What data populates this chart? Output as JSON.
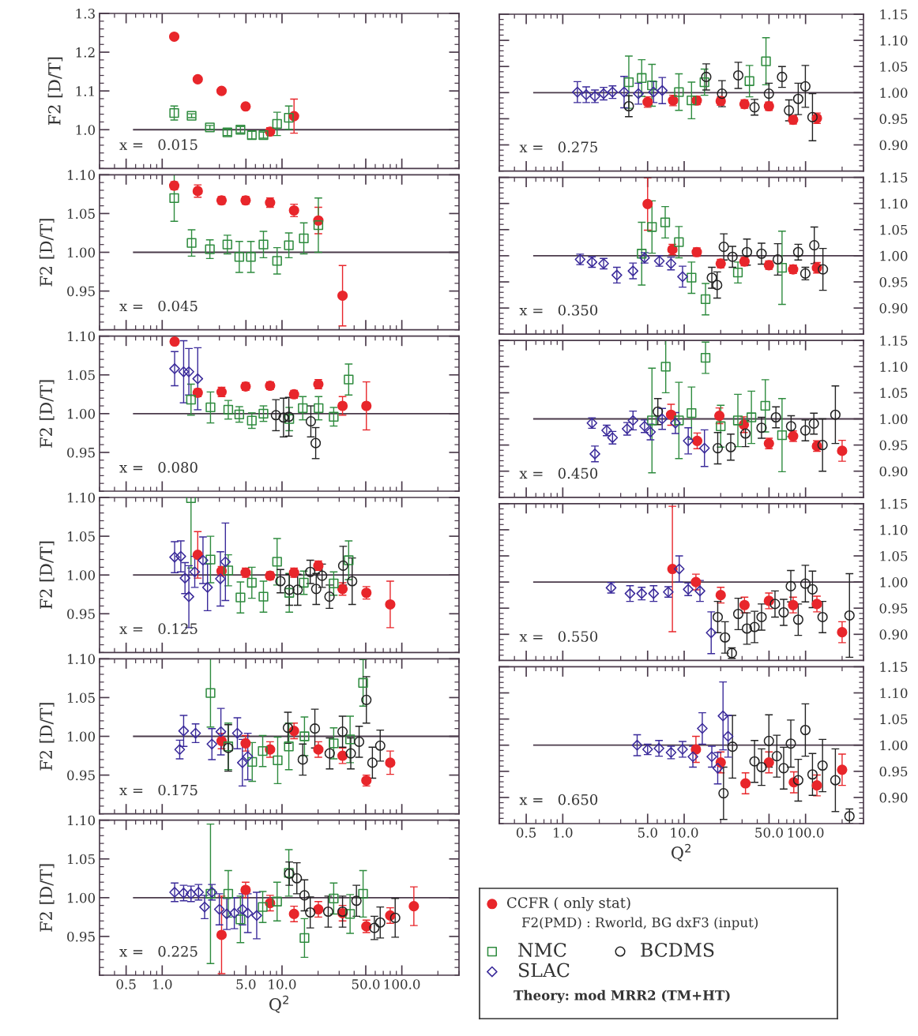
{
  "chart_data": [
    {
      "type": "scatter",
      "log": "x",
      "xlim": [
        0.3,
        300
      ],
      "xticks": [
        {
          "value": 0.5,
          "label": null
        },
        {
          "value": 1,
          "label": null
        },
        {
          "value": 5,
          "label": null
        },
        {
          "value": 10,
          "label": null
        },
        {
          "value": 50,
          "label": null
        },
        {
          "value": 100,
          "label": null
        }
      ],
      "ylim": [
        0.9,
        1.3
      ],
      "yticks": [
        {
          "value": 1.0,
          "label": "1.0"
        },
        {
          "value": 1.1,
          "label": "1.1"
        },
        {
          "value": 1.2,
          "label": "1.2"
        },
        {
          "value": 1.3,
          "label": "1.3"
        }
      ],
      "ylabel": "F2 [D/T]",
      "tick_labels": "y",
      "annotations": [
        "x =   0.015"
      ],
      "ref_lines": [
        {
          "axis": "y",
          "value": 1
        }
      ],
      "series": [
        {
          "color": "#e8262b",
          "marker": "circle",
          "x": [
            1.26,
            1.98,
            3.13,
            4.97,
            7.95,
            12.6
          ],
          "values": [
            1.24,
            1.13,
            1.1,
            1.06,
            0.995,
            1.035
          ],
          "errors": [
            0.005,
            0.005,
            0.005,
            0.005,
            0.01,
            0.044
          ]
        },
        {
          "color": "#2e8b3e",
          "marker": "square",
          "x": [
            1.26,
            1.76,
            2.5,
            3.5,
            4.5,
            5.6,
            7.0,
            9.1,
            11.4
          ],
          "values": [
            1.043,
            1.036,
            1.006,
            0.993,
            1.0,
            0.986,
            0.986,
            1.015,
            1.031
          ],
          "errors": [
            0.018,
            0.005,
            0.005,
            0.008,
            0.008,
            0.01,
            0.008,
            0.03,
            0.03
          ]
        }
      ]
    },
    {
      "type": "scatter",
      "log": "x",
      "xlim": [
        0.3,
        300
      ],
      "xticks": [
        {
          "value": 0.5,
          "label": null
        },
        {
          "value": 1,
          "label": null
        },
        {
          "value": 5,
          "label": null
        },
        {
          "value": 10,
          "label": null
        },
        {
          "value": 50,
          "label": null
        },
        {
          "value": 100,
          "label": null
        }
      ],
      "ylim": [
        0.9,
        1.1
      ],
      "yticks": [
        {
          "value": 0.95,
          "label": "0.95"
        },
        {
          "value": 1.0,
          "label": "1.00"
        },
        {
          "value": 1.05,
          "label": "1.05"
        },
        {
          "value": 1.1,
          "label": "1.10"
        }
      ],
      "ylabel": "F2 [D/T]",
      "tick_labels": "y",
      "annotations": [
        "x =   0.045"
      ],
      "ref_lines": [
        {
          "axis": "y",
          "value": 1
        }
      ],
      "series": [
        {
          "color": "#e8262b",
          "marker": "circle",
          "x": [
            1.26,
            1.98,
            3.13,
            4.97,
            7.95,
            12.6,
            20.1,
            32
          ],
          "values": [
            1.086,
            1.079,
            1.067,
            1.067,
            1.064,
            1.054,
            1.041,
            0.944
          ],
          "errors": [
            0.005,
            0.008,
            0.005,
            0.005,
            0.006,
            0.008,
            0.017,
            0.039
          ]
        },
        {
          "color": "#2e8b3e",
          "marker": "square",
          "x": [
            1.26,
            1.76,
            2.5,
            3.5,
            4.4,
            5.5,
            7.0,
            9.1,
            11.4,
            15.2,
            20.1
          ],
          "values": [
            1.07,
            1.012,
            1.004,
            1.01,
            0.994,
            0.994,
            1.01,
            0.989,
            1.009,
            1.018,
            1.035
          ],
          "errors": [
            0.03,
            0.017,
            0.012,
            0.012,
            0.02,
            0.02,
            0.017,
            0.017,
            0.016,
            0.02,
            0.035
          ]
        }
      ]
    },
    {
      "type": "scatter",
      "log": "x",
      "xlim": [
        0.3,
        300
      ],
      "xticks": [
        {
          "value": 0.5,
          "label": null
        },
        {
          "value": 1,
          "label": null
        },
        {
          "value": 5,
          "label": null
        },
        {
          "value": 10,
          "label": null
        },
        {
          "value": 50,
          "label": null
        },
        {
          "value": 100,
          "label": null
        }
      ],
      "ylim": [
        0.9,
        1.1
      ],
      "yticks": [
        {
          "value": 0.95,
          "label": "0.95"
        },
        {
          "value": 1.0,
          "label": "1.00"
        },
        {
          "value": 1.05,
          "label": "1.05"
        },
        {
          "value": 1.1,
          "label": "1.10"
        }
      ],
      "ylabel": "F2 [D/T]",
      "tick_labels": "y",
      "annotations": [
        "x =   0.080"
      ],
      "ref_lines": [
        {
          "axis": "y",
          "value": 1
        }
      ],
      "series": [
        {
          "color": "#e8262b",
          "marker": "circle",
          "x": [
            1.27,
            1.98,
            3.13,
            4.97,
            7.95,
            12.6,
            20.1,
            32,
            50.6
          ],
          "values": [
            1.093,
            1.027,
            1.028,
            1.035,
            1.036,
            1.025,
            1.038,
            1.01,
            1.01
          ],
          "errors": [
            0.004,
            0.005,
            0.006,
            0.005,
            0.005,
            0.005,
            0.006,
            0.012,
            0.031
          ]
        },
        {
          "color": "#2e8b3e",
          "marker": "square",
          "x": [
            1.74,
            2.53,
            3.56,
            4.4,
            5.6,
            7.0,
            11.5,
            14.9,
            20.2,
            27,
            36
          ],
          "values": [
            1.018,
            1.008,
            1.005,
            0.999,
            0.991,
            1.0,
            0.993,
            1.007,
            1.007,
            0.996,
            1.044
          ],
          "errors": [
            0.02,
            0.02,
            0.012,
            0.01,
            0.01,
            0.01,
            0.015,
            0.015,
            0.015,
            0.012,
            0.02
          ]
        },
        {
          "color": "#222222",
          "marker": "circle",
          "x": [
            8.9,
            10.3,
            11.4,
            17.4,
            19.1
          ],
          "values": [
            0.998,
            0.995,
            0.996,
            0.99,
            0.962
          ],
          "errors": [
            0.02,
            0.025,
            0.025,
            0.02,
            0.02
          ]
        },
        {
          "color": "#3a2a9a",
          "marker": "diamond",
          "x": [
            1.27,
            1.51,
            1.67,
            1.98
          ],
          "values": [
            1.058,
            1.054,
            1.054,
            1.045
          ],
          "errors": [
            0.022,
            0.04,
            0.03,
            0.04
          ]
        }
      ]
    },
    {
      "type": "scatter",
      "log": "x",
      "xlim": [
        0.3,
        300
      ],
      "xticks": [
        {
          "value": 0.5,
          "label": null
        },
        {
          "value": 1,
          "label": null
        },
        {
          "value": 5,
          "label": null
        },
        {
          "value": 10,
          "label": null
        },
        {
          "value": 50,
          "label": null
        },
        {
          "value": 100,
          "label": null
        }
      ],
      "ylim": [
        0.9,
        1.1
      ],
      "yticks": [
        {
          "value": 0.95,
          "label": "0.95"
        },
        {
          "value": 1.0,
          "label": "1.00"
        },
        {
          "value": 1.05,
          "label": "1.05"
        },
        {
          "value": 1.1,
          "label": "1.10"
        }
      ],
      "ylabel": "F2 [D/T]",
      "tick_labels": "y",
      "annotations": [
        "x =   0.125"
      ],
      "ref_lines": [
        {
          "axis": "y",
          "value": 1
        }
      ],
      "series": [
        {
          "color": "#e8262b",
          "marker": "circle",
          "x": [
            1.98,
            3.13,
            4.97,
            7.95,
            12.6,
            20.1,
            32,
            50.6,
            80
          ],
          "values": [
            1.026,
            1.005,
            1.003,
            0.999,
            1.003,
            1.012,
            0.982,
            0.977,
            0.962
          ],
          "errors": [
            0.03,
            0.006,
            0.006,
            0.005,
            0.006,
            0.006,
            0.008,
            0.008,
            0.03
          ]
        },
        {
          "color": "#2e8b3e",
          "marker": "square",
          "x": [
            1.74,
            2.53,
            3.56,
            4.5,
            5.6,
            7.0,
            9.1,
            11.5,
            15.2,
            27,
            36
          ],
          "values": [
            1.099,
            1.02,
            1.006,
            0.971,
            0.99,
            0.972,
            1.017,
            0.977,
            0.99,
            0.989,
            1.019
          ],
          "errors": [
            0.09,
            0.03,
            0.02,
            0.02,
            0.02,
            0.02,
            0.03,
            0.025,
            0.015,
            0.015,
            0.025
          ]
        },
        {
          "color": "#222222",
          "marker": "circle",
          "x": [
            9.7,
            11.5,
            13.5,
            17.2,
            19.3,
            21.6,
            24.9,
            32.4,
            38.5
          ],
          "values": [
            0.992,
            0.981,
            0.981,
            1.004,
            0.982,
            0.999,
            0.972,
            1.012,
            0.992
          ],
          "errors": [
            0.015,
            0.02,
            0.02,
            0.015,
            0.02,
            0.015,
            0.015,
            0.025,
            0.03
          ]
        },
        {
          "color": "#3a2a9a",
          "marker": "diamond",
          "x": [
            1.27,
            1.43,
            1.55,
            1.67,
            1.87,
            2.19,
            2.39,
            3.06,
            3.37
          ],
          "values": [
            1.023,
            1.024,
            0.996,
            0.972,
            1.004,
            1.019,
            0.984,
            0.995,
            1.017
          ],
          "errors": [
            0.02,
            0.02,
            0.02,
            0.04,
            0.02,
            0.03,
            0.03,
            0.035,
            0.05
          ]
        }
      ]
    },
    {
      "type": "scatter",
      "log": "x",
      "xlim": [
        0.3,
        300
      ],
      "xticks": [
        {
          "value": 0.5,
          "label": null
        },
        {
          "value": 1,
          "label": null
        },
        {
          "value": 5,
          "label": null
        },
        {
          "value": 10,
          "label": null
        },
        {
          "value": 50,
          "label": null
        },
        {
          "value": 100,
          "label": null
        }
      ],
      "ylim": [
        0.9,
        1.1
      ],
      "yticks": [
        {
          "value": 0.95,
          "label": "0.95"
        },
        {
          "value": 1.0,
          "label": "1.00"
        },
        {
          "value": 1.05,
          "label": "1.05"
        },
        {
          "value": 1.1,
          "label": "1.10"
        }
      ],
      "ylabel": "F2 [D/T]",
      "tick_labels": "y",
      "annotations": [
        "x =   0.175"
      ],
      "ref_lines": [
        {
          "axis": "y",
          "value": 1
        }
      ],
      "series": [
        {
          "color": "#e8262b",
          "marker": "circle",
          "x": [
            3.13,
            4.97,
            7.95,
            12.6,
            20.1,
            32,
            50.6,
            80
          ],
          "values": [
            0.994,
            0.991,
            0.983,
            1.007,
            0.983,
            0.975,
            0.943,
            0.966
          ],
          "errors": [
            0.01,
            0.01,
            0.01,
            0.01,
            0.01,
            0.01,
            0.007,
            0.015
          ]
        },
        {
          "color": "#2e8b3e",
          "marker": "square",
          "x": [
            2.53,
            3.56,
            5.64,
            6.9,
            9.2,
            11.4,
            15.4,
            27,
            37,
            47.5
          ],
          "values": [
            1.056,
            0.987,
            0.967,
            0.981,
            0.969,
            0.987,
            1.0,
            0.991,
            0.996,
            1.069
          ],
          "errors": [
            0.044,
            0.03,
            0.025,
            0.02,
            0.03,
            0.03,
            0.025,
            0.02,
            0.03,
            0.03
          ]
        },
        {
          "color": "#222222",
          "marker": "circle",
          "x": [
            3.56,
            11.2,
            14.9,
            18.8,
            25,
            32,
            37.5,
            44,
            50.6,
            56.8,
            66
          ],
          "values": [
            0.985,
            1.011,
            0.97,
            1.01,
            0.978,
            1.006,
            0.978,
            0.993,
            1.047,
            0.966,
            0.988
          ],
          "errors": [
            0.03,
            0.02,
            0.02,
            0.025,
            0.02,
            0.02,
            0.02,
            0.02,
            0.03,
            0.02,
            0.02
          ]
        },
        {
          "color": "#3a2a9a",
          "marker": "diamond",
          "x": [
            1.4,
            1.51,
            1.9,
            2.6,
            3.09,
            4.24,
            4.67,
            5.18
          ],
          "values": [
            0.983,
            1.007,
            1.004,
            0.99,
            1.006,
            1.004,
            0.966,
            0.974
          ],
          "errors": [
            0.012,
            0.02,
            0.012,
            0.02,
            0.03,
            0.02,
            0.03,
            0.03
          ]
        }
      ]
    },
    {
      "type": "scatter",
      "log": "x",
      "xlim": [
        0.3,
        300
      ],
      "xticks": [
        {
          "value": 0.5,
          "label": "0.5"
        },
        {
          "value": 1,
          "label": "1.0"
        },
        {
          "value": 5,
          "label": "5.0"
        },
        {
          "value": 10,
          "label": "10.0"
        },
        {
          "value": 50,
          "label": "50.0"
        },
        {
          "value": 100,
          "label": "100.0"
        }
      ],
      "ylim": [
        0.9,
        1.1
      ],
      "yticks": [
        {
          "value": 0.95,
          "label": "0.95"
        },
        {
          "value": 1.0,
          "label": "1.00"
        },
        {
          "value": 1.05,
          "label": "1.05"
        },
        {
          "value": 1.1,
          "label": "1.10"
        }
      ],
      "ylabel": "F2 [D/T]",
      "xlabel": "Q$^{2}$",
      "annotations": [
        "x =   0.225"
      ],
      "ref_lines": [
        {
          "axis": "y",
          "value": 1
        }
      ],
      "series": [
        {
          "color": "#e8262b",
          "marker": "circle",
          "x": [
            3.13,
            4.97,
            7.95,
            12.6,
            20.1,
            32,
            50.6,
            80,
            126
          ],
          "values": [
            0.952,
            1.01,
            0.993,
            0.979,
            0.985,
            0.98,
            0.963,
            0.977,
            0.989
          ],
          "errors": [
            0.05,
            0.01,
            0.01,
            0.01,
            0.01,
            0.01,
            0.008,
            0.01,
            0.025
          ]
        },
        {
          "color": "#2e8b3e",
          "marker": "square",
          "x": [
            2.53,
            3.56,
            4.5,
            6.9,
            9.1,
            11.4,
            15.4,
            27,
            37,
            47.5
          ],
          "values": [
            1.005,
            1.005,
            0.972,
            0.988,
            0.995,
            1.032,
            0.948,
            0.999,
            0.979,
            1.005
          ],
          "errors": [
            0.09,
            0.03,
            0.03,
            0.02,
            0.025,
            0.03,
            0.025,
            0.02,
            0.025,
            0.03
          ]
        },
        {
          "color": "#222222",
          "marker": "circle",
          "x": [
            11.5,
            13.3,
            15.4,
            17.2,
            24.3,
            32,
            41.8,
            59,
            66,
            88
          ],
          "values": [
            1.031,
            1.025,
            1.003,
            0.981,
            0.982,
            0.982,
            0.996,
            0.961,
            0.968,
            0.974
          ],
          "errors": [
            0.015,
            0.02,
            0.02,
            0.02,
            0.02,
            0.02,
            0.02,
            0.015,
            0.02,
            0.025
          ]
        },
        {
          "color": "#3a2a9a",
          "marker": "diamond",
          "x": [
            1.27,
            1.51,
            1.74,
            2.01,
            2.26,
            2.6,
            3.0,
            3.46,
            4.0,
            4.67,
            5.18,
            6.15
          ],
          "values": [
            1.007,
            1.006,
            1.005,
            1.007,
            0.988,
            1.007,
            0.985,
            0.979,
            0.98,
            0.985,
            0.98,
            0.977
          ],
          "errors": [
            0.012,
            0.01,
            0.01,
            0.01,
            0.015,
            0.01,
            0.02,
            0.02,
            0.02,
            0.02,
            0.025,
            0.03
          ]
        }
      ]
    },
    {
      "type": "scatter",
      "log": "x",
      "xlim": [
        0.3,
        300
      ],
      "xticks": [
        {
          "value": 0.5,
          "label": null
        },
        {
          "value": 1,
          "label": null
        },
        {
          "value": 5,
          "label": null
        },
        {
          "value": 10,
          "label": null
        },
        {
          "value": 50,
          "label": null
        },
        {
          "value": 100,
          "label": null
        }
      ],
      "ylim": [
        0.85,
        1.15
      ],
      "yticks": [
        {
          "value": 0.9,
          "label": "0.90"
        },
        {
          "value": 0.95,
          "label": "0.95"
        },
        {
          "value": 1.0,
          "label": "1.00"
        },
        {
          "value": 1.05,
          "label": "1.05"
        },
        {
          "value": 1.1,
          "label": "1.10"
        },
        {
          "value": 1.15,
          "label": "1.15"
        }
      ],
      "tick_labels": "y",
      "annotations": [
        "x =   0.275"
      ],
      "ref_lines": [
        {
          "axis": "y",
          "value": 1
        }
      ],
      "series": [
        {
          "color": "#e8262b",
          "marker": "circle",
          "x": [
            5.0,
            8.1,
            12.7,
            20,
            31.4,
            49.9,
            79,
            124
          ],
          "values": [
            0.982,
            0.985,
            0.985,
            0.984,
            0.978,
            0.974,
            0.948,
            0.951
          ],
          "errors": [
            0.01,
            0.01,
            0.008,
            0.008,
            0.008,
            0.008,
            0.008,
            0.01
          ]
        },
        {
          "color": "#2e8b3e",
          "marker": "square",
          "x": [
            3.5,
            4.47,
            5.43,
            9.05,
            11.5,
            14.7,
            34.5,
            47.2
          ],
          "values": [
            1.02,
            1.028,
            1.014,
            1.001,
            0.985,
            1.02,
            1.022,
            1.06
          ],
          "errors": [
            0.05,
            0.035,
            0.04,
            0.035,
            0.035,
            0.025,
            0.03,
            0.045
          ]
        },
        {
          "color": "#222222",
          "marker": "circle",
          "x": [
            3.5,
            15.2,
            20.5,
            27.9,
            38,
            49.9,
            64,
            73,
            87,
            99.6,
            114
          ],
          "values": [
            0.974,
            1.03,
            0.998,
            1.033,
            0.972,
            0.998,
            1.03,
            0.966,
            0.988,
            1.012,
            0.953
          ],
          "errors": [
            0.02,
            0.025,
            0.025,
            0.025,
            0.015,
            0.02,
            0.02,
            0.02,
            0.03,
            0.04,
            0.045
          ]
        },
        {
          "color": "#3a2a9a",
          "marker": "diamond",
          "x": [
            1.32,
            1.56,
            1.84,
            2.17,
            2.57,
            3.2,
            4.2,
            5.6,
            6.6
          ],
          "values": [
            1.001,
            0.996,
            0.993,
            0.998,
            1.001,
            1.001,
            0.998,
            1.001,
            1.004
          ],
          "errors": [
            0.02,
            0.015,
            0.012,
            0.012,
            0.012,
            0.03,
            0.02,
            0.02,
            0.025
          ]
        }
      ]
    },
    {
      "type": "scatter",
      "log": "x",
      "xlim": [
        0.3,
        300
      ],
      "xticks": [
        {
          "value": 0.5,
          "label": null
        },
        {
          "value": 1,
          "label": null
        },
        {
          "value": 5,
          "label": null
        },
        {
          "value": 10,
          "label": null
        },
        {
          "value": 50,
          "label": null
        },
        {
          "value": 100,
          "label": null
        }
      ],
      "ylim": [
        0.85,
        1.15
      ],
      "yticks": [
        {
          "value": 0.9,
          "label": "0.90"
        },
        {
          "value": 0.95,
          "label": "0.95"
        },
        {
          "value": 1.0,
          "label": "1.00"
        },
        {
          "value": 1.05,
          "label": "1.05"
        },
        {
          "value": 1.1,
          "label": "1.10"
        },
        {
          "value": 1.15,
          "label": "1.15"
        }
      ],
      "tick_labels": "y",
      "annotations": [
        "x =   0.350"
      ],
      "ref_lines": [
        {
          "axis": "y",
          "value": 1
        }
      ],
      "series": [
        {
          "color": "#e8262b",
          "marker": "circle",
          "x": [
            5.0,
            8.0,
            12.7,
            20,
            31.4,
            49.9,
            79,
            124
          ],
          "values": [
            1.099,
            1.012,
            1.007,
            0.985,
            0.989,
            0.982,
            0.974,
            0.977
          ],
          "errors": [
            0.05,
            0.01,
            0.008,
            0.008,
            0.008,
            0.008,
            0.008,
            0.01
          ]
        },
        {
          "color": "#2e8b3e",
          "marker": "square",
          "x": [
            4.47,
            5.43,
            6.98,
            9.05,
            11.5,
            15,
            27.7,
            64
          ],
          "values": [
            1.004,
            1.055,
            1.064,
            1.026,
            0.958,
            0.917,
            0.968,
            0.977
          ],
          "errors": [
            0.06,
            0.05,
            0.03,
            0.03,
            0.03,
            0.03,
            0.02,
            0.07
          ]
        },
        {
          "color": "#222222",
          "marker": "circle",
          "x": [
            16.9,
            18.7,
            21.2,
            25,
            32.9,
            43.4,
            59,
            87,
            99.6,
            118,
            139
          ],
          "values": [
            0.958,
            0.944,
            1.017,
            0.998,
            1.007,
            1.004,
            0.993,
            1.007,
            0.966,
            1.02,
            0.974
          ],
          "errors": [
            0.02,
            0.025,
            0.025,
            0.02,
            0.025,
            0.02,
            0.03,
            0.015,
            0.012,
            0.035,
            0.04
          ]
        },
        {
          "color": "#3a2a9a",
          "marker": "diamond",
          "x": [
            1.39,
            1.74,
            2.17,
            2.79,
            3.79,
            4.72,
            6.24,
            7.79,
            9.7
          ],
          "values": [
            0.993,
            0.988,
            0.985,
            0.963,
            0.971,
            0.996,
            0.99,
            0.985,
            0.96
          ],
          "errors": [
            0.01,
            0.01,
            0.01,
            0.015,
            0.015,
            0.01,
            0.01,
            0.012,
            0.02
          ]
        }
      ]
    },
    {
      "type": "scatter",
      "log": "x",
      "xlim": [
        0.3,
        300
      ],
      "xticks": [
        {
          "value": 0.5,
          "label": null
        },
        {
          "value": 1,
          "label": null
        },
        {
          "value": 5,
          "label": null
        },
        {
          "value": 10,
          "label": null
        },
        {
          "value": 50,
          "label": null
        },
        {
          "value": 100,
          "label": null
        }
      ],
      "ylim": [
        0.85,
        1.15
      ],
      "yticks": [
        {
          "value": 0.9,
          "label": "0.90"
        },
        {
          "value": 0.95,
          "label": "0.95"
        },
        {
          "value": 1.0,
          "label": "1.00"
        },
        {
          "value": 1.05,
          "label": "1.05"
        },
        {
          "value": 1.1,
          "label": "1.10"
        },
        {
          "value": 1.15,
          "label": "1.15"
        }
      ],
      "tick_labels": "y",
      "annotations": [
        "x =   0.450"
      ],
      "ref_lines": [
        {
          "axis": "y",
          "value": 1
        }
      ],
      "series": [
        {
          "color": "#e8262b",
          "marker": "circle",
          "x": [
            7.8,
            12.8,
            19.5,
            31,
            49.9,
            79,
            124,
            200
          ],
          "values": [
            1.008,
            0.958,
            1.006,
            0.989,
            0.953,
            0.967,
            0.948,
            0.939
          ],
          "errors": [
            0.02,
            0.015,
            0.015,
            0.015,
            0.01,
            0.01,
            0.01,
            0.02
          ]
        },
        {
          "color": "#2e8b3e",
          "marker": "square",
          "x": [
            5.43,
            7.05,
            9.05,
            11.5,
            15,
            20,
            27.7,
            35.8,
            46.6,
            64
          ],
          "values": [
            0.997,
            1.1,
            0.997,
            1.011,
            1.117,
            0.986,
            0.997,
            1.003,
            1.025,
            0.969
          ],
          "errors": [
            0.1,
            0.05,
            0.073,
            0.05,
            0.03,
            0.04,
            0.05,
            0.05,
            0.05,
            0.07
          ]
        },
        {
          "color": "#222222",
          "marker": "circle",
          "x": [
            6.07,
            18.9,
            24.2,
            32,
            43.4,
            57,
            76,
            99.6,
            117,
            138,
            176
          ],
          "values": [
            1.014,
            0.944,
            0.946,
            0.972,
            0.983,
            1.003,
            0.986,
            0.978,
            0.991,
            0.95,
            1.008
          ],
          "errors": [
            0.025,
            0.03,
            0.025,
            0.025,
            0.02,
            0.02,
            0.02,
            0.02,
            0.02,
            0.05,
            0.055
          ]
        },
        {
          "color": "#3a2a9a",
          "marker": "diamond",
          "x": [
            1.74,
            1.84,
            2.3,
            2.57,
            3.39,
            3.79,
            4.72,
            5.28,
            6.59,
            8.47,
            10.8,
            14.7
          ],
          "values": [
            0.992,
            0.933,
            0.978,
            0.964,
            0.981,
            0.997,
            0.986,
            0.975,
            1.0,
            0.992,
            0.958,
            0.944
          ],
          "errors": [
            0.01,
            0.015,
            0.01,
            0.012,
            0.012,
            0.018,
            0.012,
            0.015,
            0.02,
            0.02,
            0.025,
            0.035
          ]
        }
      ]
    },
    {
      "type": "scatter",
      "log": "x",
      "xlim": [
        0.3,
        300
      ],
      "xticks": [
        {
          "value": 0.5,
          "label": null
        },
        {
          "value": 1,
          "label": null
        },
        {
          "value": 5,
          "label": null
        },
        {
          "value": 10,
          "label": null
        },
        {
          "value": 50,
          "label": null
        },
        {
          "value": 100,
          "label": null
        }
      ],
      "ylim": [
        0.85,
        1.15
      ],
      "yticks": [
        {
          "value": 0.9,
          "label": "0.90"
        },
        {
          "value": 0.95,
          "label": "0.95"
        },
        {
          "value": 1.0,
          "label": "1.00"
        },
        {
          "value": 1.05,
          "label": "1.05"
        },
        {
          "value": 1.1,
          "label": "1.10"
        },
        {
          "value": 1.15,
          "label": "1.15"
        }
      ],
      "tick_labels": "y",
      "annotations": [
        "x =   0.550"
      ],
      "ref_lines": [
        {
          "axis": "y",
          "value": 1
        }
      ],
      "series": [
        {
          "color": "#e8262b",
          "marker": "circle",
          "x": [
            8.0,
            12.5,
            20,
            31.4,
            49.9,
            79,
            124,
            200
          ],
          "values": [
            1.025,
            1.0,
            0.975,
            0.956,
            0.964,
            0.956,
            0.958,
            0.904
          ],
          "errors": [
            0.12,
            0.015,
            0.015,
            0.015,
            0.015,
            0.015,
            0.015,
            0.02
          ]
        },
        {
          "color": "#222222",
          "marker": "circle",
          "x": [
            18.9,
            21.7,
            24.7,
            27.9,
            32.9,
            38,
            43.4,
            56,
            66,
            75.6,
            87,
            99.6,
            114,
            138,
            230
          ],
          "values": [
            0.933,
            0.894,
            0.864,
            0.939,
            0.911,
            0.914,
            0.933,
            0.958,
            0.942,
            0.992,
            0.928,
            0.997,
            0.986,
            0.933,
            0.936
          ],
          "errors": [
            0.03,
            0.03,
            0.01,
            0.03,
            0.03,
            0.03,
            0.025,
            0.025,
            0.025,
            0.03,
            0.03,
            0.035,
            0.035,
            0.03,
            0.08
          ]
        },
        {
          "color": "#3a2a9a",
          "marker": "diamond",
          "x": [
            2.5,
            3.58,
            4.47,
            5.6,
            7.4,
            9.1,
            10.8,
            13.5,
            16.7
          ],
          "values": [
            0.989,
            0.978,
            0.978,
            0.978,
            0.981,
            1.025,
            0.986,
            0.983,
            0.903
          ],
          "errors": [
            0.01,
            0.015,
            0.012,
            0.015,
            0.01,
            0.025,
            0.012,
            0.02,
            0.04
          ]
        }
      ]
    },
    {
      "type": "scatter",
      "log": "x",
      "xlim": [
        0.3,
        300
      ],
      "xticks": [
        {
          "value": 0.5,
          "label": "0.5"
        },
        {
          "value": 1,
          "label": "1.0"
        },
        {
          "value": 5,
          "label": "5.0"
        },
        {
          "value": 10,
          "label": "10.0"
        },
        {
          "value": 50,
          "label": "50.0"
        },
        {
          "value": 100,
          "label": "100.0"
        }
      ],
      "ylim": [
        0.85,
        1.15
      ],
      "yticks": [
        {
          "value": 0.9,
          "label": "0.90"
        },
        {
          "value": 0.95,
          "label": "0.95"
        },
        {
          "value": 1.0,
          "label": "1.00"
        },
        {
          "value": 1.05,
          "label": "1.05"
        },
        {
          "value": 1.1,
          "label": "1.10"
        },
        {
          "value": 1.15,
          "label": "1.15"
        }
      ],
      "xlabel": "Q$^{2}$",
      "legend": "bottom",
      "annotations": [
        "x =   0.650",
        "F2(PMD) : Rworld, BG dxF3 (input)",
        "Theory: mod MRR2 (TM+HT)"
      ],
      "ref_lines": [
        {
          "axis": "y",
          "value": 1
        }
      ],
      "series": [
        {
          "name": "CCFR ( only stat)",
          "color": "#e8262b",
          "marker": "circle",
          "x": [
            12.5,
            20,
            32,
            49.9,
            80,
            124,
            200
          ],
          "values": [
            0.992,
            0.967,
            0.927,
            0.967,
            0.929,
            0.923,
            0.953
          ],
          "errors": [
            0.025,
            0.02,
            0.02,
            0.02,
            0.02,
            0.02,
            0.03
          ]
        },
        {
          "name": "NMC",
          "color": "#2e8b3e",
          "marker": "square"
        },
        {
          "name": "BCDMS",
          "color": "#222222",
          "marker": "circle",
          "x": [
            21.1,
            25,
            38,
            43.4,
            49.9,
            58,
            66,
            75.6,
            87,
            99.6,
            114,
            138,
            176,
            230
          ],
          "values": [
            0.908,
            0.997,
            0.969,
            0.958,
            1.008,
            0.979,
            0.956,
            1.003,
            0.933,
            1.029,
            0.944,
            0.961,
            0.933,
            0.864
          ],
          "errors": [
            0.05,
            0.06,
            0.04,
            0.035,
            0.05,
            0.04,
            0.04,
            0.045,
            0.04,
            0.05,
            0.04,
            0.05,
            0.06,
            0.014
          ]
        },
        {
          "name": "SLAC",
          "color": "#3a2a9a",
          "marker": "diamond",
          "x": [
            4.1,
            5.0,
            6.2,
            7.8,
            9.7,
            11.8,
            14.1,
            16.9,
            18.9,
            20.9,
            23
          ],
          "values": [
            1.0,
            0.992,
            0.994,
            0.986,
            0.992,
            0.978,
            1.032,
            0.978,
            0.956,
            1.056,
            1.017
          ],
          "errors": [
            0.02,
            0.01,
            0.015,
            0.012,
            0.015,
            0.02,
            0.03,
            0.02,
            0.03,
            0.065,
            0.04
          ]
        }
      ]
    }
  ]
}
